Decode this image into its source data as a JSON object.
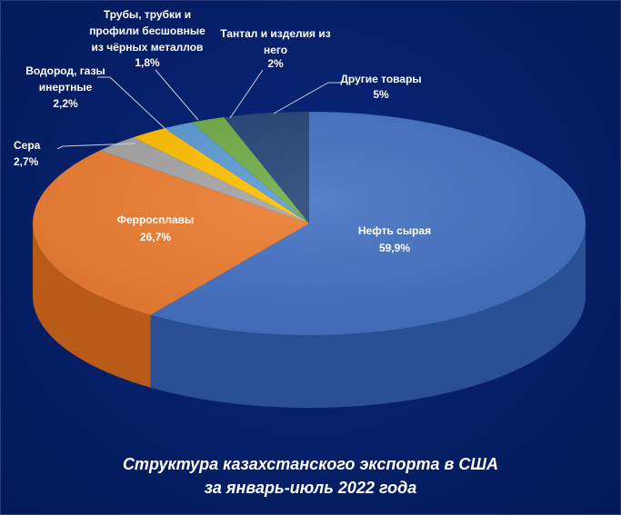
{
  "chart_data": {
    "type": "pie",
    "title": "Структура казахстанского экспорта в США",
    "subtitle": "за январь-июль  2022 года",
    "slices": [
      {
        "name": "Нефть сырая",
        "value": 59.9,
        "label": "59,9%",
        "color": "#4472c4",
        "dark": "#2a4f94",
        "label_inside": true
      },
      {
        "name": "Ферросплавы",
        "value": 26.7,
        "label": "26,7%",
        "color": "#ed7d31",
        "dark": "#b85a18",
        "label_inside": true
      },
      {
        "name": "Сера",
        "value": 2.7,
        "label": "2,7%",
        "color": "#a5a5a5",
        "dark": "#7a7a7a",
        "label_inside": false
      },
      {
        "name": "Водород, газы инертные",
        "value": 2.2,
        "label": "2,2%",
        "color": "#ffc000",
        "dark": "#c79500",
        "label_inside": false
      },
      {
        "name": "Трубы, трубки и профили бесшовные из чёрных металлов",
        "value": 1.8,
        "label": "1,8%",
        "color": "#5b9bd5",
        "dark": "#3a74a8",
        "label_inside": false
      },
      {
        "name": "Тантал и изделия из него",
        "value": 2,
        "label": "2%",
        "color": "#70ad47",
        "dark": "#4f8030",
        "label_inside": false
      },
      {
        "name": "Другие товары",
        "value": 5,
        "label": "5%",
        "color": "#264478",
        "dark": "#172d52",
        "label_inside": false
      }
    ],
    "legend": "none"
  }
}
